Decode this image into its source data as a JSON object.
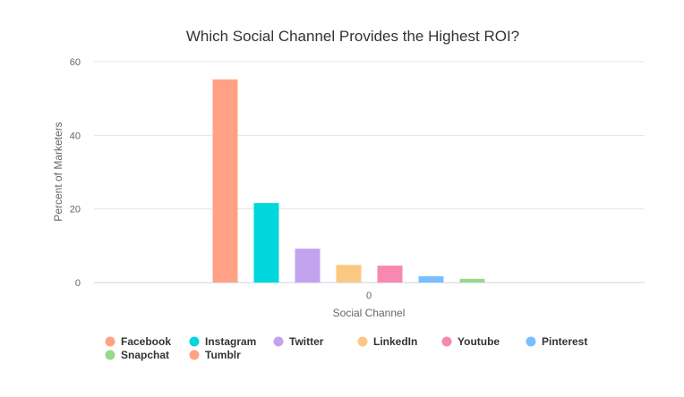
{
  "chart_data": {
    "type": "bar",
    "title": "Which Social Channel Provides the Highest ROI?",
    "xlabel": "Social Channel",
    "ylabel": "Percent of Marketers",
    "categories": [
      "0"
    ],
    "ylim": [
      0,
      60
    ],
    "yticks": [
      0,
      20,
      40,
      60
    ],
    "grid": true,
    "legend_position": "bottom-left",
    "series": [
      {
        "name": "Facebook",
        "values": [
          55.2
        ],
        "color": "#FFA185"
      },
      {
        "name": "Instagram",
        "values": [
          21.6
        ],
        "color": "#00D7DC"
      },
      {
        "name": "Twitter",
        "values": [
          9.2
        ],
        "color": "#C3A3EE"
      },
      {
        "name": "LinkedIn",
        "values": [
          4.8
        ],
        "color": "#FBC884"
      },
      {
        "name": "Youtube",
        "values": [
          4.6
        ],
        "color": "#F788AF"
      },
      {
        "name": "Pinterest",
        "values": [
          1.7
        ],
        "color": "#78BFFF"
      },
      {
        "name": "Snapchat",
        "values": [
          1.0
        ],
        "color": "#96D988"
      },
      {
        "name": "Tumblr",
        "values": [
          0
        ],
        "color": "#FFA185"
      }
    ]
  }
}
